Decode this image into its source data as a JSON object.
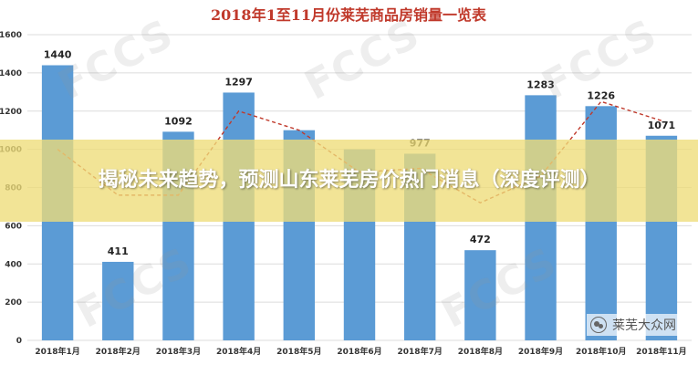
{
  "chart_data": {
    "type": "bar",
    "title": "2018年1至11月份莱芜商品房销量一览表",
    "categories": [
      "2018年1月",
      "2018年2月",
      "2018年3月",
      "2018年4月",
      "2018年5月",
      "2018年6月",
      "2018年7月",
      "2018年8月",
      "2018年9月",
      "2018年10月",
      "2018年11月"
    ],
    "values": [
      1440,
      411,
      1092,
      1297,
      1100,
      1000,
      977,
      472,
      1283,
      1226,
      1071
    ],
    "data_labels": [
      "1440",
      "411",
      "1092",
      "1297",
      "",
      "",
      "977",
      "472",
      "1283",
      "1226",
      "1071"
    ],
    "trend_line": [
      1000,
      760,
      760,
      1200,
      1100,
      880,
      900,
      720,
      860,
      1250,
      1150
    ],
    "ylim": [
      0,
      1600
    ],
    "yticks": [
      "0",
      "200",
      "400",
      "600",
      "800",
      "1000",
      "1200",
      "1400",
      "1600"
    ],
    "xlabel": "",
    "ylabel": "",
    "grid": true,
    "colors": {
      "bar": "#5b9bd5",
      "trend": "#c0392b",
      "title": "#c0392b"
    }
  },
  "overlay": {
    "text": "揭秘未来趋势，预测山东莱芜房价热门消息（深度评测）"
  },
  "watermark": {
    "text": "FCCS"
  },
  "brand": {
    "name": "莱芜大众网",
    "icon": "wechat-icon"
  }
}
